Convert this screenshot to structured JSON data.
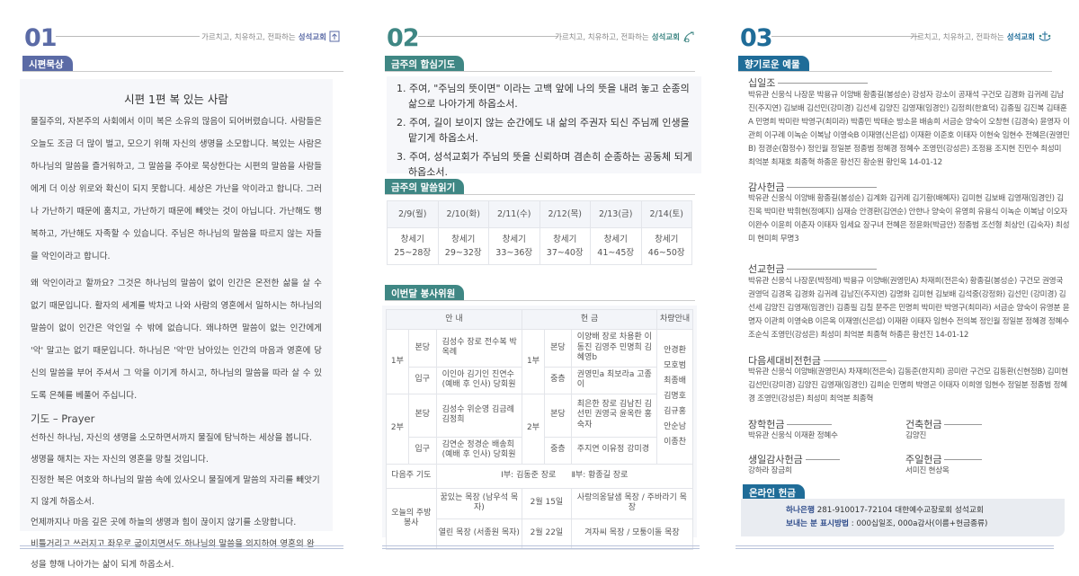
{
  "motto": "가르치고, 치유하고, 전파하는",
  "church": "성석교회",
  "colors": {
    "page1": "#5b6ba6",
    "page2": "#3f8784",
    "page3": "#1f6c98"
  },
  "page1": {
    "num": "01",
    "tab": "시편묵상",
    "title": "시편 1편  복 있는 사람",
    "paragraphs": [
      "물질주의, 자본주의 사회에서 이미 복은 소유의 많음이 되어버렸습니다. 사람들은 오늘도 조금 더 많이 벌고, 모으기 위해 자신의 생명을 소모합니다. 복있는 사람은 하나님의 말씀을 즐거워하고, 그 말씀을 주야로 묵상한다는 시편의 말씀을 사람들에게 더 이상 위로와 확신이 되지 못합니다. 세상은 가난을 악이라고 합니다. 그러나 가난하기 때문에 훔치고, 가난하기 때문에 빼앗는 것이 아닙니다. 가난해도 행복하고, 가난해도 자족할 수 있습니다. 주님은 하나님의 말씀을 따르지 않는 자들을 악인이라고 합니다.",
      "왜 악인이라고 할까요? 그것은 하나님의 말씀이 없이 인간은 온전한 삶을 살 수 없기 때문입니다. 활자의 세계를 박차고 나와 사람의 영혼에서 일하시는 하나님의 말씀이 없이 인간은 악인일 수 밖에 없습니다. 왜냐하면 말씀이 없는 인간에게 '악' 말고는 없기 때문입니다. 하나님은 '악'만 남아있는 인간의 마음과 영혼에 당신의 말씀을 부어 주셔서 그 악을 이기게 하시고, 하나님의 말씀을 따라 살 수 있도록 은혜를 베풀어 주십니다."
    ],
    "prayer_title": "기도 – Prayer",
    "prayer_lines": [
      "선하신 하나님, 자신의 생명을 소모하면서까지 물질에 탐닉하는 세상을 봅니다.",
      "생명을 해치는 자는 자신의 영혼을 망칠 것입니다.",
      "진정한 복은 여호와 하나님의 말씀 속에 있사오니 물질에게 말씀의 자리를 빼앗기지 않게 하옵소서.",
      "언제까지나 마음 깊은 곳에 하늘의 생명과 힘이 끊이지 않기를 소망합니다.",
      "비틀거리고 쓰러지고 좌우로 굽이치면서도 하나님의 말씀을 의지하여 영혼의 완성을 향해 나아가는 삶이 되게 하옵소서."
    ]
  },
  "page2": {
    "num": "02",
    "prayer_tab": "금주의 합심기도",
    "prayers": [
      "1. 주여, \"주님의 뜻이면\" 이라는 고백 앞에 나의 뜻을 내려 놓고 순종의 삶으로 나아가게 하옵소서.",
      "2. 주여, 길이 보이지 않는 순간에도 내 삶의 주권자 되신 주님께 인생을 맡기게 하옵소서.",
      "3. 주여, 성석교회가 주님의 뜻을 신뢰하며 겸손히 순종하는 공동체 되게 하옵소서."
    ],
    "reading_tab": "금주의 말씀읽기",
    "reading": [
      {
        "day": "2/9(월)",
        "book": "창세기",
        "chapters": "25~28장"
      },
      {
        "day": "2/10(화)",
        "book": "창세기",
        "chapters": "29~32장"
      },
      {
        "day": "2/11(수)",
        "book": "창세기",
        "chapters": "33~36장"
      },
      {
        "day": "2/12(목)",
        "book": "창세기",
        "chapters": "37~40장"
      },
      {
        "day": "2/13(금)",
        "book": "창세기",
        "chapters": "41~45장"
      },
      {
        "day": "2/14(토)",
        "book": "창세기",
        "chapters": "46~50장"
      }
    ],
    "volunteer_tab": "이번달 봉사위원",
    "volunteer": {
      "h_guide": "안   내",
      "h_offering": "헌   금",
      "h_car": "차량안내",
      "s1": "1부",
      "s2": "2부",
      "main": "본당",
      "entrance": "입구",
      "mezz": "중층",
      "g1_main": "김성수 장로 전수복 박옥례",
      "g1_ent": "이인아 김기인 진연수 (예배 후 인사) 당회원",
      "g2_main": "김성수 위순영 김금례 김정희",
      "g2_ent": "김연순 정경순 배송희 (예배 후 인사) 당회원",
      "o1_main": "이양배 장로 차용환 이동진 김영주 민명희 김혜영b",
      "o1_mezz": "권영민a 최보라a 고종이",
      "o2_main": "최은한 장로 김남진 김선민 권영국 윤옥란 홍숙자",
      "o2_mezz": "주지연 이유정 강미경",
      "car": "안경환 모호범 최종배 김명호 김규홍 안순남 이종찬",
      "next_prayer_label": "다음주 기도",
      "next_prayer": "Ⅰ부: 김동준 장로      Ⅱ부: 황종길 장로",
      "kitchen_label": "오늘의 주방봉사",
      "kitchen": [
        {
          "group": "꿈있는 목장 (남우석 목자)",
          "date": "2월 15일",
          "groups": "사랑의옹달샘 목장 / 주바라기 목장"
        },
        {
          "group": "열린 목장 (서종원 목자)",
          "date": "2월 22일",
          "groups": "겨자씨 목장 / 모퉁이돌 목장"
        }
      ]
    }
  },
  "page3": {
    "num": "03",
    "tab": "향기로운 예물",
    "tithe": {
      "title": "십일조",
      "names": "박유관 신웅식 나장운 박용규 이양배 황종길(봉성순) 강성자 강소이 공재석 구건모 김경화 김귀례 김남진(주지연) 김보배 김선민(강미경) 김선세 김양진 김영재(임경인) 김정희(한효덕) 김종필 김진복 김태훈A 민명희 박미란 박영구(최미라) 박종민 박태순 방소윤 배송희 서금순 양숙이 오창현 (김경숙) 윤영자 이관희 이구례 이녹순 이복남 이영숙B 이재영(신은섭) 이재환 이준호 이태자 이현숙 임현수 전혜은(권영민B) 정경순(함정수) 정인월 정일분 정종범 정혜경 정혜수 조영민(강성은) 조정용 조지현 진민수 최성미 최억분 최재호 최종혁 하종운 황선진 황순원 황인옥 14-01-12"
    },
    "thanks": {
      "title": "감사헌금",
      "names": "박유관 신웅식 이양배 황종길(봉성순) 김계화 김귀례 김기황(배혜자) 김미현 김보배 김영재(임경인) 김진옥 박미란 박휘현(정예지) 심재승 안경환(김연순) 안한나 양숙이 유영희 유용식 이녹순 이복남 이오자 이완수 이윤희 이춘자 이태자 임세요 장구녀 전혜은 정윤화(박금안) 정종범 조선형 최상인 (김숙자) 최성미 현미희 무명3"
    },
    "mission": {
      "title": "선교헌금",
      "names": "박유관 신웅식 나장운(박정례) 박용규 이양배(권영민A) 차재희(전은숙) 황종길(봉성순) 구건모 권영국 권영덕 김경옥 김경화 김귀례 김남진(주지연) 김명화 김미현 김보배 김석중(강정화) 김선민 (강미경) 김선세 김양진 김영재(임경인) 김종필 김칠 문주은 민명희 박미란 박영구(최미라) 서금순 양숙이 유영분 윤명자 이관희 이영숙B 이은옥 이재영(신은섭) 이재환 이태자 임현수 전의복 정인월 정일분 정혜경 정혜수 조순식 조영민(강성은) 최성미 최억분 최종혁 하종은 황선진 14-01-12"
    },
    "nextgen": {
      "title": "다음세대비전헌금",
      "names": "박유관 신웅식 이양배(권영민A) 차재희(전은숙) 김동준(한지희) 공미란 구건모 김동환(신현정B) 김미현 김선민(강미경) 김양진 김영재(임경인) 김희순 민명희 박영곤 이태자 이희영 임현수 정일분 정종범 정혜경 조영민(강성은) 최성미 최억분 최종혁"
    },
    "scholarship": {
      "title": "장학헌금",
      "names": "박유관 신웅식 이재환 정혜수"
    },
    "building": {
      "title": "건축헌금",
      "names": "김양진"
    },
    "birthday": {
      "title": "생일감사헌금",
      "names": "강하라 장금희"
    },
    "sunday": {
      "title": "주일헌금",
      "names": "서미진 현상옥"
    },
    "online_tab": "온라인 헌금",
    "bank": "하나은행",
    "account": "281-910017-72104 대한예수교장로회 성석교회",
    "method_label": "보내는 분 표시방법",
    "method": ": 000십일조, 000a감사(이름+헌금종류)"
  }
}
